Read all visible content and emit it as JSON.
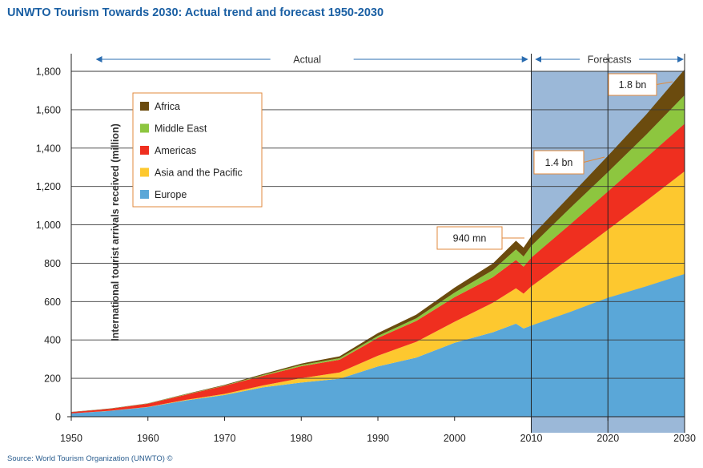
{
  "chart_data": {
    "type": "area",
    "title": "UNWTO Tourism Towards 2030: Actual trend and forecast 1950-2030",
    "ylabel": "International tourist arrivals received (million)",
    "xlabel": "",
    "xlim": [
      1950,
      2030
    ],
    "ylim": [
      0,
      1800
    ],
    "x_ticks": [
      "1950",
      "1960",
      "1970",
      "1980",
      "1990",
      "2000",
      "2010",
      "2020",
      "2030"
    ],
    "y_ticks": [
      "0",
      "200",
      "400",
      "600",
      "800",
      "1,000",
      "1,200",
      "1,400",
      "1,600",
      "1,800"
    ],
    "grid": "horizontal",
    "legend_position": "top-left",
    "stacked": true,
    "forecast_start": 2010,
    "period_labels": {
      "actual": "Actual",
      "forecast": "Forecasts"
    },
    "annotations": [
      {
        "text": "940 mn",
        "x": 2010,
        "y": 940
      },
      {
        "text": "1.4 bn",
        "x": 2020,
        "y": 1360
      },
      {
        "text": "1.8 bn",
        "x": 2030,
        "y": 1810
      }
    ],
    "colors": {
      "Europe": "#5aa7d8",
      "Asia and the Pacific": "#fdc82f",
      "Americas": "#ef2f1f",
      "Middle East": "#8dc63f",
      "Africa": "#6b4b0e",
      "forecast_band": "#9bb8d8"
    },
    "x": [
      1950,
      1955,
      1960,
      1965,
      1970,
      1975,
      1980,
      1985,
      1990,
      1995,
      2000,
      2005,
      2008,
      2009,
      2010,
      2015,
      2020,
      2025,
      2030
    ],
    "series": [
      {
        "name": "Europe",
        "values": [
          17,
          30,
          50,
          85,
          113,
          153,
          178,
          198,
          262,
          308,
          385,
          440,
          485,
          460,
          475,
          545,
          620,
          680,
          744
        ]
      },
      {
        "name": "Asia and the Pacific",
        "values": [
          0.2,
          1,
          1,
          3,
          6,
          10,
          23,
          33,
          56,
          82,
          110,
          154,
          184,
          181,
          204,
          280,
          355,
          445,
          535
        ]
      },
      {
        "name": "Americas",
        "values": [
          7,
          10,
          17,
          27,
          42,
          50,
          62,
          66,
          93,
          109,
          128,
          133,
          148,
          141,
          150,
          175,
          199,
          225,
          248
        ]
      },
      {
        "name": "Middle East",
        "values": [
          0.2,
          0.5,
          1,
          2,
          2,
          4,
          7,
          8,
          10,
          14,
          24,
          37,
          55,
          53,
          61,
          85,
          101,
          120,
          149
        ]
      },
      {
        "name": "Africa",
        "values": [
          0.5,
          1,
          1,
          2,
          3,
          5,
          7,
          10,
          15,
          19,
          26,
          35,
          45,
          46,
          50,
          64,
          85,
          105,
          134
        ]
      }
    ]
  },
  "source": "Source: World Tourism Organization (UNWTO) ©"
}
